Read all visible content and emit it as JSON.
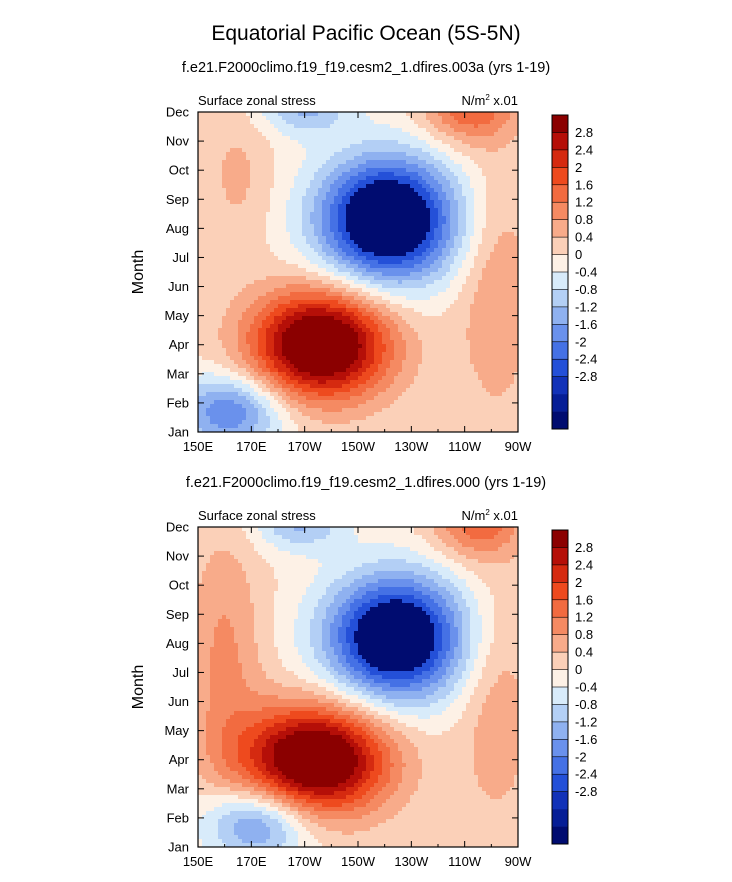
{
  "title": "Equatorial Pacific Ocean (5S-5N)",
  "chart_data": [
    {
      "type": "heatmap",
      "subtitle": "f.e21.F2000climo.f19_f19.cesm2_1.dfires.003a (yrs 1-19)",
      "left_label": "Surface zonal stress",
      "units_label": "N/m",
      "units_sup": "2",
      "units_scale": "x.01",
      "ylabel": "Month",
      "xlabel": "",
      "x_ticks": [
        "150E",
        "170E",
        "170W",
        "150W",
        "130W",
        "110W",
        "90W"
      ],
      "y_ticks": [
        "Jan",
        "Feb",
        "Mar",
        "Apr",
        "May",
        "Jun",
        "Jul",
        "Aug",
        "Sep",
        "Oct",
        "Nov",
        "Dec"
      ],
      "xlim": [
        150,
        270
      ],
      "ylim": [
        1,
        12
      ],
      "features": [
        {
          "x": 221,
          "y": 8.3,
          "sx": 18,
          "sy": 1.5,
          "rot": -0.55,
          "amp": -4.2
        },
        {
          "x": 196,
          "y": 4.0,
          "sx": 18,
          "sy": 1.3,
          "rot": -0.5,
          "amp": 4.0
        },
        {
          "x": 162,
          "y": 1.7,
          "sx": 14,
          "sy": 0.9,
          "rot": 0.0,
          "amp": -2.0
        },
        {
          "x": 190,
          "y": 12.2,
          "sx": 12,
          "sy": 0.7,
          "rot": 0.0,
          "amp": -1.3
        },
        {
          "x": 252,
          "y": 12.2,
          "sx": 12,
          "sy": 0.9,
          "rot": 0.0,
          "amp": 1.6
        },
        {
          "x": 165,
          "y": 9.8,
          "sx": 9,
          "sy": 1.8,
          "rot": 0.0,
          "amp": 0.5
        },
        {
          "x": 262,
          "y": 5.8,
          "sx": 10,
          "sy": 3.0,
          "rot": 0.0,
          "amp": 0.8
        }
      ]
    },
    {
      "type": "heatmap",
      "subtitle": "f.e21.F2000climo.f19_f19.cesm2_1.dfires.000 (yrs 1-19)",
      "left_label": "Surface zonal stress",
      "units_label": "N/m",
      "units_sup": "2",
      "units_scale": "x.01",
      "ylabel": "Month",
      "xlabel": "",
      "x_ticks": [
        "150E",
        "170E",
        "170W",
        "150W",
        "130W",
        "110W",
        "90W"
      ],
      "y_ticks": [
        "Jan",
        "Feb",
        "Mar",
        "Apr",
        "May",
        "Jun",
        "Jul",
        "Aug",
        "Sep",
        "Oct",
        "Nov",
        "Dec"
      ],
      "xlim": [
        150,
        270
      ],
      "ylim": [
        1,
        12
      ],
      "features": [
        {
          "x": 224,
          "y": 8.2,
          "sx": 18,
          "sy": 1.5,
          "rot": -0.55,
          "amp": -4.0
        },
        {
          "x": 194,
          "y": 4.0,
          "sx": 19,
          "sy": 1.3,
          "rot": -0.5,
          "amp": 4.0
        },
        {
          "x": 172,
          "y": 1.8,
          "sx": 14,
          "sy": 0.9,
          "rot": 0.0,
          "amp": -1.9
        },
        {
          "x": 188,
          "y": 12.2,
          "sx": 12,
          "sy": 0.7,
          "rot": 0.0,
          "amp": -1.3
        },
        {
          "x": 255,
          "y": 12.2,
          "sx": 12,
          "sy": 0.9,
          "rot": 0.0,
          "amp": 1.5
        },
        {
          "x": 160,
          "y": 7.5,
          "sx": 10,
          "sy": 3.0,
          "rot": 0.0,
          "amp": 0.9
        },
        {
          "x": 262,
          "y": 5.8,
          "sx": 10,
          "sy": 3.0,
          "rot": 0.0,
          "amp": 0.7
        }
      ]
    }
  ],
  "colorbar": {
    "labels": [
      "2.8",
      "2.4",
      "2",
      "1.6",
      "1.2",
      "0.8",
      "0.4",
      "0",
      "-0.4",
      "-0.8",
      "-1.2",
      "-1.6",
      "-2",
      "-2.4",
      "-2.8"
    ],
    "colors": [
      "#8b0000",
      "#b50f08",
      "#d52a10",
      "#ee4a1e",
      "#f26b40",
      "#f58a62",
      "#f8ab8a",
      "#fbd0b8",
      "#fdf1e6",
      "#d8ebfa",
      "#b3cff5",
      "#8fb1f0",
      "#6a91ec",
      "#4571e5",
      "#2450d8",
      "#1232b8",
      "#061e96",
      "#000c70"
    ]
  }
}
